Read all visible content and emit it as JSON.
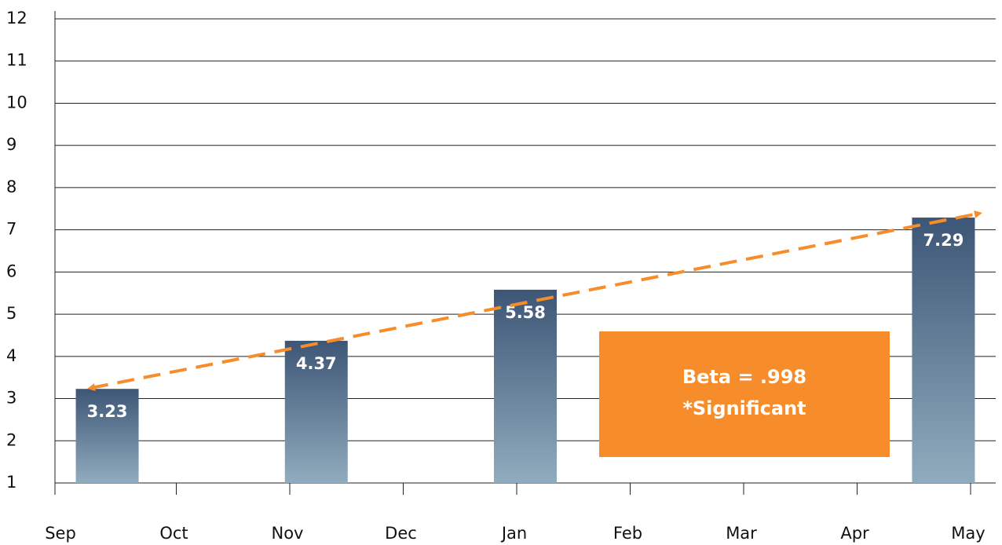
{
  "chart_data": {
    "type": "bar",
    "categories": [
      "Sep",
      "Oct",
      "Nov",
      "Dec",
      "Jan",
      "Feb",
      "Mar",
      "Apr",
      "May"
    ],
    "values": [
      3.23,
      null,
      4.37,
      null,
      5.58,
      null,
      null,
      null,
      7.29
    ],
    "color": "#3d5676",
    "ylim": [
      1,
      12
    ],
    "yticks": [
      1,
      2,
      3,
      4,
      5,
      6,
      7,
      8,
      9,
      10,
      11,
      12
    ],
    "grid": true,
    "annotations": [
      "Beta = .998",
      "*Significant"
    ],
    "annotation_color": "#f78c2a"
  }
}
